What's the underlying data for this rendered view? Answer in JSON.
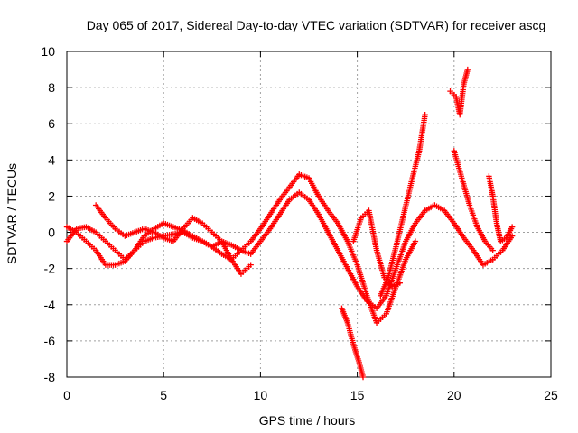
{
  "chart_data": {
    "type": "scatter",
    "title": "Day 065 of 2017, Sidereal Day-to-day VTEC variation (SDTVAR) for receiver ascg",
    "xlabel": "GPS time / hours",
    "ylabel": "SDTVAR / TECUs",
    "xlim": [
      0,
      25
    ],
    "ylim": [
      -8,
      10
    ],
    "xticks": [
      "0",
      "5",
      "10",
      "15",
      "20",
      "25"
    ],
    "yticks": [
      "-8",
      "-6",
      "-4",
      "-2",
      "0",
      "2",
      "4",
      "6",
      "8",
      "10"
    ],
    "grid": true,
    "marker": "plus",
    "color": "#ff0000",
    "series": [
      {
        "x": [
          0.0,
          0.5,
          1.0,
          1.5,
          2.0,
          2.5,
          3.0,
          3.5,
          4.0,
          4.5,
          5.0,
          5.5,
          6.0,
          6.5,
          7.0,
          7.5,
          8.0,
          8.5,
          9.0,
          9.5,
          10.0,
          10.5,
          11.0,
          11.5,
          12.0,
          12.5,
          13.0,
          13.5,
          14.0,
          14.5,
          15.0,
          15.5,
          16.0,
          16.5,
          17.0,
          17.5,
          18.0,
          18.5,
          19.0,
          19.5,
          20.0,
          20.5,
          21.0,
          21.5,
          22.0,
          22.5,
          23.0
        ],
        "y": [
          -0.5,
          0.2,
          0.3,
          0.0,
          -0.5,
          -1.0,
          -1.5,
          -1.0,
          -0.5,
          -0.3,
          -0.2,
          -0.1,
          0.0,
          -0.3,
          -0.5,
          -0.8,
          -0.5,
          -0.7,
          -1.0,
          -1.2,
          -0.5,
          0.2,
          1.0,
          1.8,
          2.2,
          1.8,
          1.0,
          0.0,
          -1.0,
          -2.0,
          -3.0,
          -3.8,
          -4.2,
          -3.5,
          -2.0,
          -0.5,
          0.5,
          1.2,
          1.5,
          1.2,
          0.5,
          -0.3,
          -1.0,
          -1.8,
          -1.5,
          -1.0,
          -0.2
        ]
      },
      {
        "x": [
          0.0,
          0.5,
          1.0,
          1.5,
          2.0,
          2.5,
          3.0,
          3.5,
          4.0,
          4.5,
          5.0,
          5.5,
          6.0,
          6.5,
          7.0,
          7.5,
          8.0,
          8.5,
          9.0,
          9.5,
          10.0,
          10.5,
          11.0,
          11.5,
          12.0,
          12.5,
          13.0,
          13.5,
          14.0,
          14.5,
          15.0,
          15.5,
          16.0,
          16.5,
          17.0,
          17.5,
          18.0
        ],
        "y": [
          0.3,
          0.0,
          -0.5,
          -1.0,
          -1.8,
          -1.8,
          -1.6,
          -1.0,
          -0.2,
          0.2,
          0.5,
          0.3,
          0.1,
          -0.2,
          -0.5,
          -0.8,
          -1.2,
          -1.5,
          -1.0,
          -0.5,
          0.2,
          1.0,
          1.8,
          2.5,
          3.2,
          3.0,
          2.0,
          1.2,
          0.5,
          -0.5,
          -1.8,
          -3.5,
          -5.0,
          -4.5,
          -3.0,
          -1.5,
          -0.5
        ]
      },
      {
        "x": [
          1.5,
          2.0,
          2.5,
          3.0,
          3.5,
          4.0,
          4.5,
          5.0,
          5.5,
          6.0,
          6.5,
          7.0,
          7.5,
          8.0,
          8.5,
          9.0,
          9.5
        ],
        "y": [
          1.5,
          0.8,
          0.2,
          -0.2,
          0.0,
          0.2,
          0.0,
          -0.3,
          -0.5,
          0.2,
          0.8,
          0.5,
          0.0,
          -0.5,
          -1.5,
          -2.3,
          -1.8
        ]
      },
      {
        "x": [
          14.2,
          14.5,
          14.8,
          15.1,
          15.3
        ],
        "y": [
          -4.2,
          -5.0,
          -6.2,
          -7.2,
          -8.0
        ]
      },
      {
        "x": [
          16.2,
          16.6,
          17.0,
          17.4,
          17.8,
          18.2,
          18.5
        ],
        "y": [
          -3.5,
          -2.5,
          -0.8,
          1.0,
          2.8,
          4.5,
          6.5
        ]
      },
      {
        "x": [
          19.8,
          20.1,
          20.3,
          20.5,
          20.7
        ],
        "y": [
          7.8,
          7.5,
          6.5,
          8.2,
          9.0
        ]
      },
      {
        "x": [
          20.0,
          20.4,
          20.8,
          21.2,
          21.6,
          22.0
        ],
        "y": [
          4.5,
          3.0,
          1.5,
          0.3,
          -0.5,
          -1.0
        ]
      },
      {
        "x": [
          21.8,
          22.0,
          22.2,
          22.4,
          22.7,
          23.0
        ],
        "y": [
          3.1,
          2.0,
          0.5,
          -0.5,
          -0.3,
          0.3
        ]
      },
      {
        "x": [
          14.8,
          15.2,
          15.6,
          16.0,
          16.4,
          16.8,
          17.2
        ],
        "y": [
          -0.5,
          0.8,
          1.2,
          -1.0,
          -2.5,
          -3.0,
          -2.8
        ]
      }
    ]
  }
}
